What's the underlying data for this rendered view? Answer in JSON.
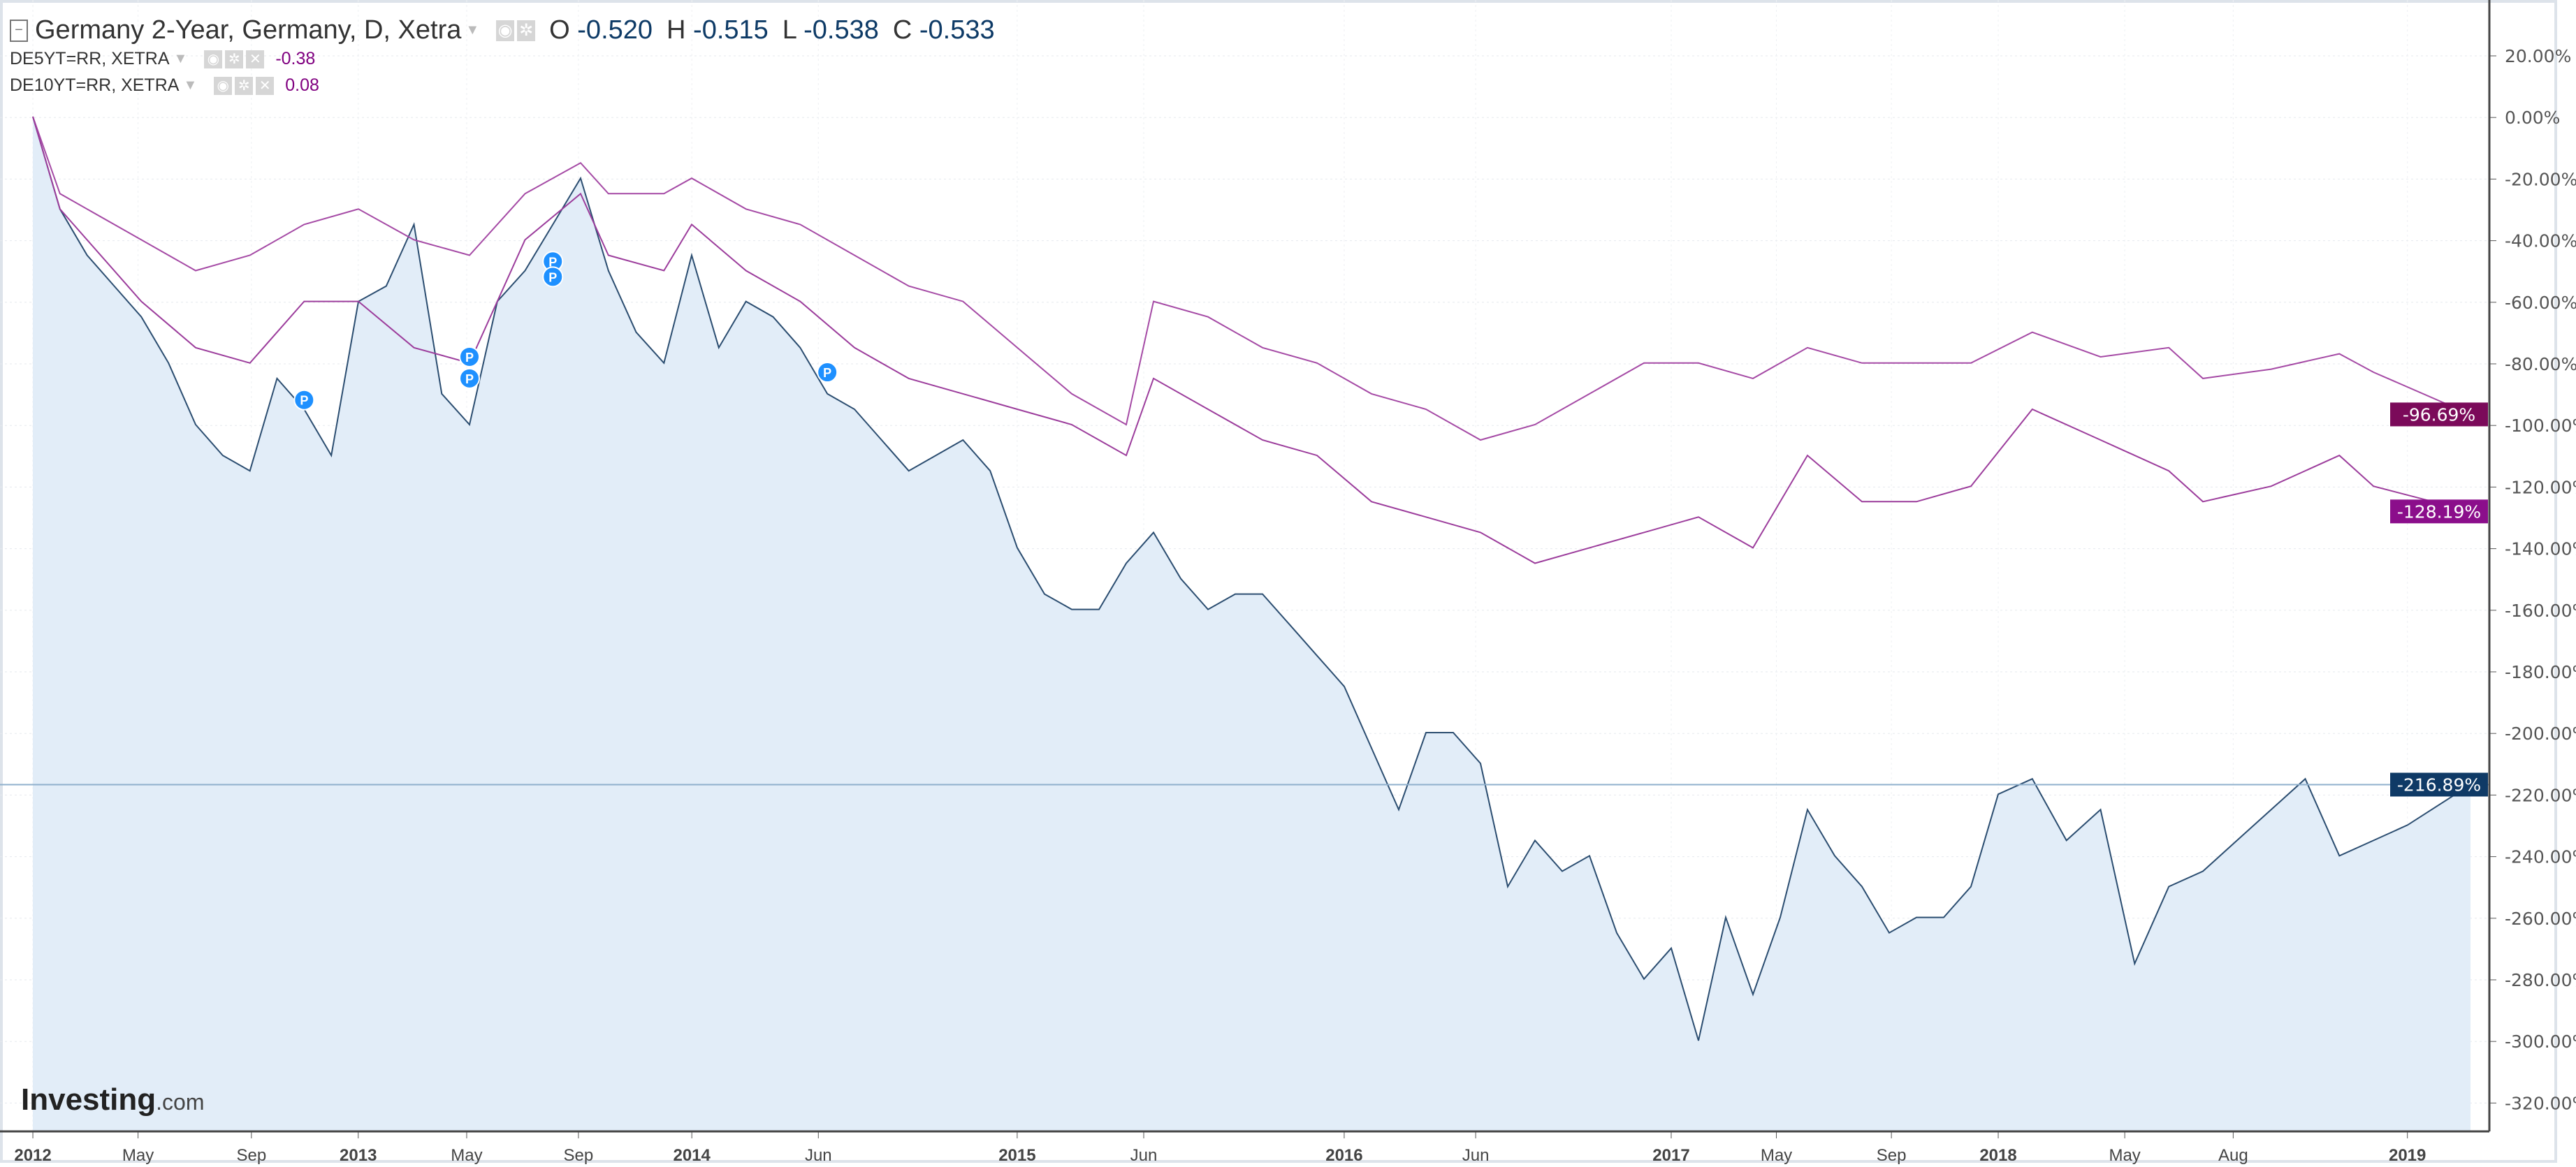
{
  "header": {
    "main": {
      "title": "Germany 2-Year, Germany, D, Xetra",
      "o_label": "O",
      "o": "-0.520",
      "h_label": "H",
      "h": "-0.515",
      "l_label": "L",
      "l": "-0.538",
      "c_label": "C",
      "c": "-0.533"
    },
    "overlays": [
      {
        "title": "DE5YT=RR, XETRA",
        "value": "-0.38",
        "color": "#800080"
      },
      {
        "title": "DE10YT=RR, XETRA",
        "value": "0.08",
        "color": "#800080"
      }
    ]
  },
  "logo": {
    "brand": "Investing",
    "suffix": ".com"
  },
  "chart_data": {
    "type": "line",
    "ylabel": "",
    "ylim": [
      -330,
      30
    ],
    "y_ticks": [
      "20.00%",
      "0.00%",
      "-20.00%",
      "-40.00%",
      "-60.00%",
      "-80.00%",
      "-100.00%",
      "-120.00%",
      "-140.00%",
      "-160.00%",
      "-180.00%",
      "-200.00%",
      "-220.00%",
      "-240.00%",
      "-260.00%",
      "-280.00%",
      "-300.00%",
      "-320.00%"
    ],
    "x_ticks": [
      "2012",
      "May",
      "Sep",
      "2013",
      "May",
      "Sep",
      "2014",
      "Jun",
      "2015",
      "Jun",
      "2016",
      "Jun",
      "2017",
      "May",
      "Sep",
      "2018",
      "May",
      "Aug",
      "2019"
    ],
    "grid": true,
    "series": [
      {
        "name": "Germany 2-Year",
        "color": "#2b4d70",
        "fill": "#e2edf8",
        "last_label": "-216.89%",
        "last_color": "#0f3a66",
        "x": [
          "2012-01",
          "2012-02",
          "2012-03",
          "2012-04",
          "2012-05",
          "2012-06",
          "2012-07",
          "2012-08",
          "2012-09",
          "2012-10",
          "2012-11",
          "2012-12",
          "2013-01",
          "2013-02",
          "2013-03",
          "2013-04",
          "2013-05",
          "2013-06",
          "2013-07",
          "2013-08",
          "2013-09",
          "2013-10",
          "2013-11",
          "2013-12",
          "2014-01",
          "2014-02",
          "2014-03",
          "2014-04",
          "2014-05",
          "2014-06",
          "2014-07",
          "2014-08",
          "2014-09",
          "2014-10",
          "2014-11",
          "2014-12",
          "2015-01",
          "2015-02",
          "2015-03",
          "2015-04",
          "2015-05",
          "2015-06",
          "2015-07",
          "2015-08",
          "2015-09",
          "2015-10",
          "2015-11",
          "2015-12",
          "2016-01",
          "2016-02",
          "2016-03",
          "2016-04",
          "2016-05",
          "2016-06",
          "2016-07",
          "2016-08",
          "2016-09",
          "2016-10",
          "2016-11",
          "2016-12",
          "2017-01",
          "2017-02",
          "2017-03",
          "2017-04",
          "2017-05",
          "2017-06",
          "2017-07",
          "2017-08",
          "2017-09",
          "2017-10",
          "2017-11",
          "2017-12",
          "2018-01",
          "2018-02",
          "2018-03",
          "2018-04",
          "2018-05",
          "2018-06",
          "2018-07",
          "2018-08",
          "2018-09",
          "2018-10",
          "2018-11",
          "2018-12",
          "2019-01",
          "2019-02"
        ],
        "values": [
          0,
          -30,
          -45,
          -55,
          -65,
          -80,
          -100,
          -110,
          -115,
          -85,
          -95,
          -110,
          -60,
          -55,
          -35,
          -90,
          -100,
          -60,
          -50,
          -35,
          -20,
          -50,
          -70,
          -80,
          -45,
          -75,
          -60,
          -65,
          -75,
          -90,
          -95,
          -105,
          -115,
          -110,
          -105,
          -115,
          -140,
          -155,
          -160,
          -160,
          -145,
          -135,
          -150,
          -160,
          -155,
          -155,
          -165,
          -175,
          -185,
          -205,
          -225,
          -200,
          -200,
          -210,
          -250,
          -235,
          -245,
          -240,
          -265,
          -280,
          -270,
          -300,
          -260,
          -285,
          -260,
          -225,
          -240,
          -250,
          -265,
          -260,
          -260,
          -250,
          -220,
          -215,
          -235,
          -225,
          -275,
          -250,
          -245,
          -235,
          -225,
          -215,
          -240,
          -235,
          -230,
          -216.89
        ]
      },
      {
        "name": "DE5YT=RR, XETRA",
        "color": "#a54aa5",
        "last_label": "-96.69%",
        "last_color": "#7b0a5a",
        "x": [
          "2012-01",
          "2012-02",
          "2012-05",
          "2012-07",
          "2012-09",
          "2012-11",
          "2013-01",
          "2013-03",
          "2013-05",
          "2013-07",
          "2013-09",
          "2013-10",
          "2013-12",
          "2014-01",
          "2014-03",
          "2014-05",
          "2014-07",
          "2014-09",
          "2014-11",
          "2015-01",
          "2015-03",
          "2015-05",
          "2015-06",
          "2015-08",
          "2015-10",
          "2015-12",
          "2016-02",
          "2016-04",
          "2016-06",
          "2016-08",
          "2016-10",
          "2016-12",
          "2017-02",
          "2017-04",
          "2017-06",
          "2017-08",
          "2017-10",
          "2017-12",
          "2018-02",
          "2018-04",
          "2018-06",
          "2018-07",
          "2018-09",
          "2018-11",
          "2018-12",
          "2019-02"
        ],
        "values": [
          0,
          -25,
          -40,
          -50,
          -45,
          -35,
          -30,
          -40,
          -45,
          -25,
          -15,
          -25,
          -25,
          -20,
          -30,
          -35,
          -45,
          -55,
          -60,
          -75,
          -90,
          -100,
          -60,
          -65,
          -75,
          -80,
          -90,
          -95,
          -105,
          -100,
          -90,
          -80,
          -80,
          -85,
          -75,
          -80,
          -80,
          -80,
          -70,
          -78,
          -75,
          -85,
          -82,
          -77,
          -83,
          -96.69
        ]
      },
      {
        "name": "DE10YT=RR, XETRA",
        "color": "#9c3d9c",
        "last_label": "-128.19%",
        "last_color": "#8b0e8b",
        "x": [
          "2012-01",
          "2012-02",
          "2012-05",
          "2012-07",
          "2012-09",
          "2012-11",
          "2013-01",
          "2013-03",
          "2013-05",
          "2013-07",
          "2013-09",
          "2013-10",
          "2013-12",
          "2014-01",
          "2014-03",
          "2014-05",
          "2014-07",
          "2014-09",
          "2014-11",
          "2015-01",
          "2015-03",
          "2015-05",
          "2015-06",
          "2015-08",
          "2015-10",
          "2015-12",
          "2016-02",
          "2016-04",
          "2016-06",
          "2016-08",
          "2016-10",
          "2016-12",
          "2017-02",
          "2017-04",
          "2017-05",
          "2017-06",
          "2017-08",
          "2017-10",
          "2017-12",
          "2018-02",
          "2018-04",
          "2018-06",
          "2018-07",
          "2018-09",
          "2018-11",
          "2018-12",
          "2019-02"
        ],
        "values": [
          0,
          -30,
          -60,
          -75,
          -80,
          -60,
          -60,
          -75,
          -80,
          -40,
          -25,
          -45,
          -50,
          -35,
          -50,
          -60,
          -75,
          -85,
          -90,
          -95,
          -100,
          -110,
          -85,
          -95,
          -105,
          -110,
          -125,
          -130,
          -135,
          -145,
          -140,
          -135,
          -130,
          -140,
          -125,
          -110,
          -125,
          -125,
          -120,
          -95,
          -105,
          -115,
          -125,
          -120,
          -110,
          -120,
          -128.19
        ]
      }
    ],
    "markers": [
      {
        "label": "P",
        "x": "2012-11",
        "y": -92
      },
      {
        "label": "P",
        "x": "2013-05",
        "y": -85
      },
      {
        "label": "P",
        "x": "2013-05",
        "y": -78
      },
      {
        "label": "P",
        "x": "2013-08",
        "y": -47
      },
      {
        "label": "P",
        "x": "2013-08",
        "y": -52
      },
      {
        "label": "P",
        "x": "2014-06",
        "y": -83
      }
    ],
    "hline": {
      "value": -216.89,
      "color": "#8fb0cc"
    }
  }
}
